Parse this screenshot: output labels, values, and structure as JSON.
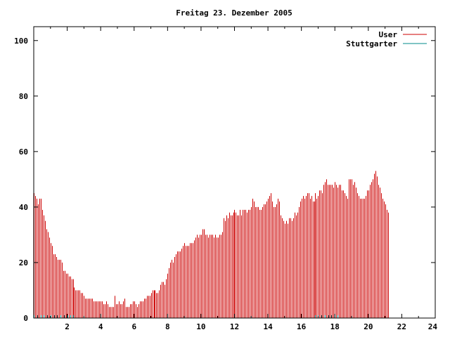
{
  "chart_data": {
    "type": "bar",
    "title": "Freitag 23. Dezember 2005",
    "xlabel": "",
    "ylabel": "",
    "xlim": [
      0,
      24
    ],
    "ylim": [
      0,
      105
    ],
    "x_ticks": [
      2,
      4,
      6,
      8,
      10,
      12,
      14,
      16,
      18,
      20,
      22,
      24
    ],
    "y_ticks": [
      0,
      20,
      40,
      60,
      80,
      100
    ],
    "legend_position": "top-right",
    "grid": false,
    "series": [
      {
        "name": "User",
        "color": "#cc0000",
        "style": "impulses",
        "x_start": 0,
        "x_step": 0.0833333,
        "values": [
          45,
          44,
          43,
          41,
          43,
          43,
          39,
          37,
          35,
          32,
          31,
          29,
          27,
          26,
          23,
          23,
          22,
          21,
          21,
          21,
          20,
          17,
          17,
          16,
          16,
          15,
          15,
          14,
          14,
          11,
          10,
          10,
          10,
          10,
          9,
          9,
          8,
          7,
          7,
          7,
          7,
          7,
          7,
          6,
          6,
          6,
          6,
          6,
          6,
          6,
          5,
          5,
          6,
          5,
          4,
          4,
          4,
          4,
          8,
          5,
          5,
          6,
          5,
          5,
          6,
          7,
          4,
          4,
          4,
          5,
          5,
          6,
          6,
          5,
          4,
          5,
          6,
          6,
          6,
          7,
          7,
          8,
          8,
          8,
          9,
          10,
          10,
          10,
          9,
          9,
          10,
          12,
          13,
          13,
          12,
          14,
          16,
          18,
          20,
          21,
          20,
          22,
          23,
          24,
          24,
          24,
          25,
          26,
          27,
          26,
          26,
          26,
          27,
          27,
          27,
          28,
          29,
          30,
          29,
          30,
          30,
          32,
          32,
          30,
          30,
          29,
          30,
          30,
          30,
          29,
          30,
          29,
          29,
          30,
          30,
          31,
          36,
          35,
          37,
          36,
          38,
          37,
          37,
          38,
          39,
          38,
          37,
          37,
          39,
          37,
          39,
          39,
          39,
          38,
          39,
          39,
          40,
          43,
          42,
          40,
          40,
          40,
          39,
          39,
          40,
          41,
          41,
          42,
          43,
          44,
          45,
          42,
          40,
          40,
          41,
          43,
          42,
          37,
          36,
          35,
          34,
          35,
          34,
          36,
          36,
          35,
          36,
          38,
          37,
          38,
          40,
          42,
          43,
          44,
          43,
          44,
          45,
          45,
          43,
          44,
          42,
          42,
          45,
          43,
          44,
          46,
          46,
          45,
          48,
          49,
          50,
          48,
          48,
          48,
          48,
          47,
          49,
          48,
          47,
          48,
          48,
          46,
          46,
          45,
          44,
          43,
          50,
          50,
          50,
          48,
          49,
          47,
          45,
          44,
          43,
          43,
          43,
          43,
          44,
          46,
          46,
          48,
          49,
          50,
          52,
          53,
          51,
          48,
          47,
          45,
          43,
          42,
          41,
          39,
          38
        ]
      },
      {
        "name": "Stuttgarter",
        "color": "#008b8b",
        "style": "impulses",
        "points": [
          [
            0.0,
            1
          ],
          [
            0.2,
            1
          ],
          [
            0.4,
            1
          ],
          [
            0.6,
            1
          ],
          [
            0.8,
            1
          ],
          [
            1.0,
            1
          ],
          [
            1.2,
            1
          ],
          [
            1.4,
            1
          ],
          [
            1.6,
            1
          ],
          [
            1.8,
            1
          ],
          [
            2.0,
            1
          ],
          [
            2.2,
            1
          ],
          [
            2.35,
            1
          ],
          [
            16.8,
            1
          ],
          [
            17.0,
            1
          ],
          [
            17.2,
            1
          ],
          [
            17.4,
            1
          ],
          [
            17.6,
            1
          ],
          [
            17.8,
            1
          ],
          [
            18.0,
            1
          ],
          [
            18.15,
            1
          ]
        ]
      }
    ]
  }
}
